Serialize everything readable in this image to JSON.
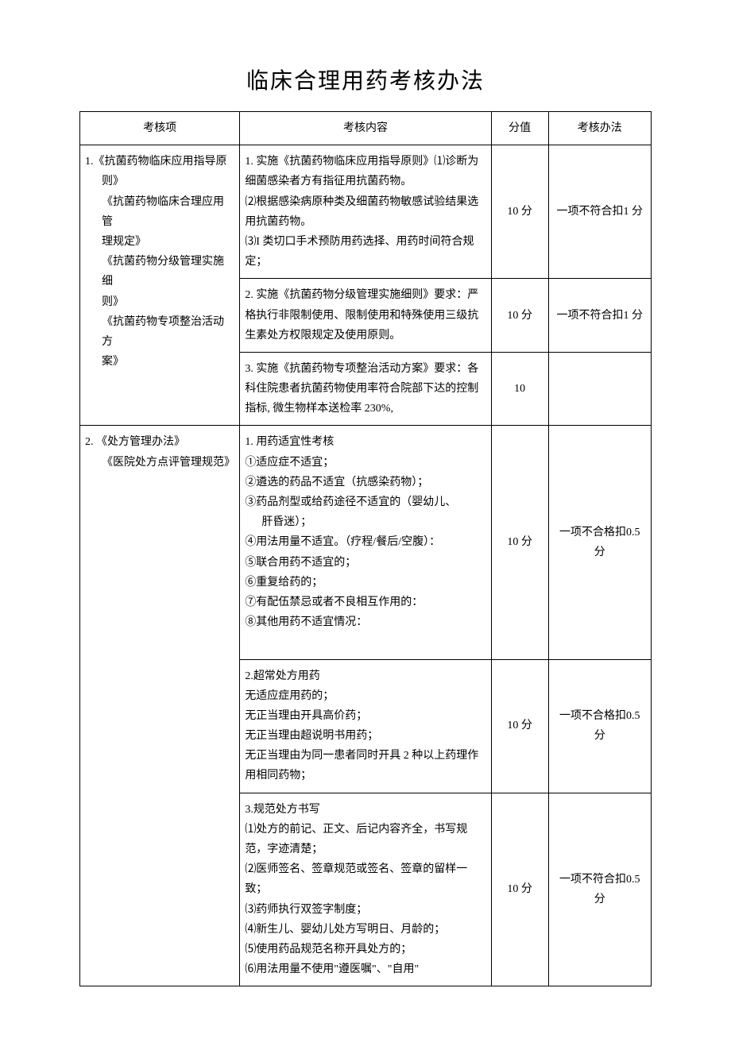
{
  "title": "临床合理用药考核办法",
  "headers": {
    "col1": "考核项",
    "col2": "考核内容",
    "col3": "分值",
    "col4": "考核办法"
  },
  "item1": {
    "name_line1": "1.《抗菌药物临床应用指导原",
    "name_line2": "则》",
    "name_line3": "《抗菌药物临床合理应用管",
    "name_line4": "理规定》",
    "name_line5": "《抗菌药物分级管理实施细",
    "name_line6": "则》",
    "name_line7": "《抗菌药物专项整治活动方",
    "name_line8": "案》",
    "r1_c1": "1. 实施《抗菌药物临床应用指导原则》⑴诊断为细菌感染者方有指征用抗菌药物。",
    "r1_c2": "⑵根据感染病原种类及细菌药物敏感试验结果选用抗菌药物。",
    "r1_c3": "⑶I 类切口手术预防用药选择、用药时间符合规定；",
    "r1_score": "10 分",
    "r1_method": "一项不符合扣1 分",
    "r2_c": "2. 实施《抗菌药物分级管理实施细则》要求：严格执行非限制使用、限制使用和特殊使用三级抗生素处方权限规定及使用原则。",
    "r2_score": "10 分",
    "r2_method": "一项不符合扣1 分",
    "r3_c": "3. 实施《抗菌药物专项整治活动方案》要求：各科住院患者抗菌药物使用率符合院部下达的控制指标, 微生物样本送检率 230%,",
    "r3_score": "10",
    "r3_method": ""
  },
  "item2": {
    "name_line1": "2. 《处方管理办法》",
    "name_line2": "《医院处方点评管理规范》",
    "r1_head": "1. 用药适宜性考核",
    "r1_l1": "①适应症不适宜；",
    "r1_l2": "②遴选的药品不适宜（抗感染药物）；",
    "r1_l3": "③药品剂型或给药途径不适宜的（婴幼儿、",
    "r1_l3b": "肝昏迷）；",
    "r1_l4": "④用法用量不适宜。（疗程/餐后/空腹）：",
    "r1_l5": "⑤联合用药不适宜的；",
    "r1_l6": "⑥重复给药的；",
    "r1_l7": "⑦有配伍禁忌或者不良相互作用的：",
    "r1_l8": "⑧其他用药不适宜情况：",
    "r1_score": "10 分",
    "r1_method": "一项不合格扣0.5 分",
    "r2_head": "2.超常处方用药",
    "r2_l1": "无适应症用药的；",
    "r2_l2": "无正当理由开具高价药；",
    "r2_l3": "无正当理由超说明书用药；",
    "r2_l4": "无正当理由为同一患者同时开具 2 种以上药理作用相同药物；",
    "r2_score": "10 分",
    "r2_method": "一项不合格扣0.5 分",
    "r3_head": "3.规范处方书写",
    "r3_l1": "⑴处方的前记、正文、后记内容齐全，书写规范，字迹清楚；",
    "r3_l2": "⑵医师签名、签章规范或签名、签章的留样一致；",
    "r3_l3": "⑶药师执行双签字制度；",
    "r3_l4": "⑷新生儿、婴幼儿处方写明日、月龄的；",
    "r3_l5": "⑸使用药品规范名称开具处方的；",
    "r3_l6": "⑹用法用量不使用\"遵医嘱\"、\"自用\"",
    "r3_score": "10 分",
    "r3_method": "一项不符合扣0.5 分"
  }
}
